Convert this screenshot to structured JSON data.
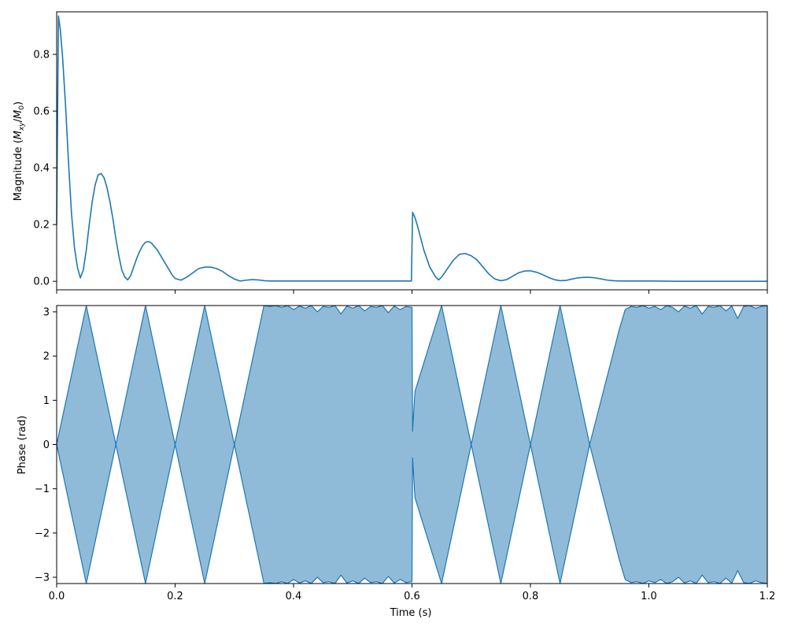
{
  "chart_data": [
    {
      "type": "line",
      "title": "",
      "xlabel": "",
      "ylabel": "Magnitude (M_xy/M_0)",
      "ylabel_parts": {
        "prefix": "Magnitude (",
        "main1": "M",
        "sub1": "xy",
        "slash": "/",
        "main2": "M",
        "sub2": "0",
        "suffix": ")"
      },
      "xlim": [
        0,
        1.2
      ],
      "ylim": [
        -0.03,
        0.95
      ],
      "xticks": [
        0,
        0.2,
        0.4,
        0.6,
        0.8,
        1.0,
        1.2
      ],
      "xtick_labels_visible": false,
      "yticks": [
        0.0,
        0.2,
        0.4,
        0.6,
        0.8
      ],
      "ytick_labels": [
        "0.0",
        "0.2",
        "0.4",
        "0.6",
        "0.8"
      ],
      "grid": false,
      "color": "#1f77b4",
      "series": [
        {
          "x": [
            0.0,
            0.003,
            0.006,
            0.01,
            0.015,
            0.02,
            0.025,
            0.03,
            0.035,
            0.04,
            0.045,
            0.05,
            0.055,
            0.06,
            0.065,
            0.07,
            0.075,
            0.08,
            0.085,
            0.09,
            0.095,
            0.1,
            0.105,
            0.11,
            0.115,
            0.12,
            0.125,
            0.13,
            0.135,
            0.14,
            0.145,
            0.15,
            0.155,
            0.16,
            0.17,
            0.18,
            0.19,
            0.195,
            0.2,
            0.21,
            0.22,
            0.23,
            0.24,
            0.25,
            0.26,
            0.27,
            0.28,
            0.29,
            0.3,
            0.31,
            0.32,
            0.33,
            0.34,
            0.35,
            0.36,
            0.37,
            0.38,
            0.4,
            0.42,
            0.45,
            0.5,
            0.55,
            0.599,
            0.601,
            0.605,
            0.61,
            0.62,
            0.63,
            0.64,
            0.645,
            0.65,
            0.66,
            0.67,
            0.68,
            0.69,
            0.7,
            0.71,
            0.72,
            0.73,
            0.74,
            0.75,
            0.76,
            0.77,
            0.78,
            0.79,
            0.8,
            0.81,
            0.82,
            0.83,
            0.84,
            0.85,
            0.86,
            0.87,
            0.88,
            0.89,
            0.9,
            0.91,
            0.92,
            0.93,
            0.94,
            0.95,
            1.0,
            1.05,
            1.1,
            1.2
          ],
          "y": [
            0.2,
            0.935,
            0.89,
            0.79,
            0.62,
            0.42,
            0.24,
            0.12,
            0.05,
            0.012,
            0.04,
            0.11,
            0.2,
            0.28,
            0.34,
            0.375,
            0.38,
            0.365,
            0.33,
            0.28,
            0.22,
            0.15,
            0.09,
            0.04,
            0.015,
            0.005,
            0.02,
            0.05,
            0.08,
            0.105,
            0.125,
            0.138,
            0.14,
            0.135,
            0.11,
            0.075,
            0.04,
            0.022,
            0.01,
            0.004,
            0.015,
            0.03,
            0.045,
            0.05,
            0.05,
            0.045,
            0.035,
            0.02,
            0.008,
            0.001,
            0.004,
            0.006,
            0.005,
            0.002,
            0.001,
            0.001,
            0.001,
            0.001,
            0.001,
            0.001,
            0.001,
            0.001,
            0.001,
            0.243,
            0.225,
            0.19,
            0.11,
            0.05,
            0.015,
            0.005,
            0.015,
            0.045,
            0.075,
            0.095,
            0.098,
            0.09,
            0.075,
            0.05,
            0.025,
            0.008,
            0.002,
            0.006,
            0.018,
            0.03,
            0.036,
            0.037,
            0.032,
            0.024,
            0.014,
            0.006,
            0.002,
            0.003,
            0.008,
            0.012,
            0.014,
            0.014,
            0.012,
            0.008,
            0.004,
            0.002,
            0.001,
            0.001,
            0.0,
            0.0,
            0.0
          ]
        }
      ]
    },
    {
      "type": "area",
      "title": "",
      "xlabel": "Time (s)",
      "ylabel": "Phase (rad)",
      "xlim": [
        0,
        1.2
      ],
      "ylim": [
        -3.1416,
        3.1416
      ],
      "xticks": [
        0,
        0.2,
        0.4,
        0.6,
        0.8,
        1.0,
        1.2
      ],
      "xtick_labels": [
        "0.0",
        "0.2",
        "0.4",
        "0.6",
        "0.8",
        "1.0",
        "1.2"
      ],
      "yticks": [
        -3,
        -2,
        -1,
        0,
        1,
        2,
        3
      ],
      "ytick_labels": [
        "−3",
        "−2",
        "−1",
        "0",
        "1",
        "2",
        "3"
      ],
      "grid": false,
      "line_color": "#1f77b4",
      "fill_color": "#1f77b4",
      "fill_opacity": 0.5,
      "fill_between": "upper and mirrored lower boundary (±)",
      "series": [
        {
          "x": [
            0.0,
            0.05,
            0.1,
            0.15,
            0.2,
            0.25,
            0.3,
            0.35,
            0.36,
            0.37,
            0.38,
            0.39,
            0.4,
            0.41,
            0.42,
            0.43,
            0.44,
            0.45,
            0.46,
            0.47,
            0.48,
            0.49,
            0.5,
            0.51,
            0.52,
            0.53,
            0.54,
            0.55,
            0.56,
            0.57,
            0.58,
            0.59,
            0.6,
            0.601,
            0.605,
            0.65,
            0.7,
            0.75,
            0.8,
            0.85,
            0.9,
            0.95,
            0.96,
            0.97,
            0.98,
            0.99,
            1.0,
            1.01,
            1.02,
            1.03,
            1.04,
            1.05,
            1.06,
            1.07,
            1.08,
            1.09,
            1.1,
            1.11,
            1.12,
            1.13,
            1.14,
            1.15,
            1.16,
            1.17,
            1.18,
            1.19,
            1.2
          ],
          "upper": [
            0.0,
            3.14,
            0.0,
            3.14,
            0.0,
            3.14,
            0.0,
            3.14,
            3.12,
            3.14,
            3.1,
            3.14,
            3.05,
            3.13,
            3.08,
            3.14,
            3.0,
            3.12,
            3.1,
            3.14,
            2.95,
            3.13,
            3.08,
            3.14,
            3.02,
            3.12,
            3.1,
            3.14,
            2.98,
            3.13,
            3.05,
            3.12,
            3.1,
            0.3,
            1.2,
            3.14,
            0.0,
            3.14,
            0.0,
            3.14,
            0.0,
            2.6,
            3.05,
            3.12,
            3.1,
            3.14,
            3.08,
            3.12,
            3.05,
            3.14,
            3.1,
            3.0,
            3.13,
            3.08,
            3.14,
            2.95,
            3.12,
            3.1,
            3.14,
            3.02,
            3.13,
            2.85,
            3.12,
            3.14,
            3.08,
            3.12,
            3.14
          ]
        }
      ]
    }
  ]
}
